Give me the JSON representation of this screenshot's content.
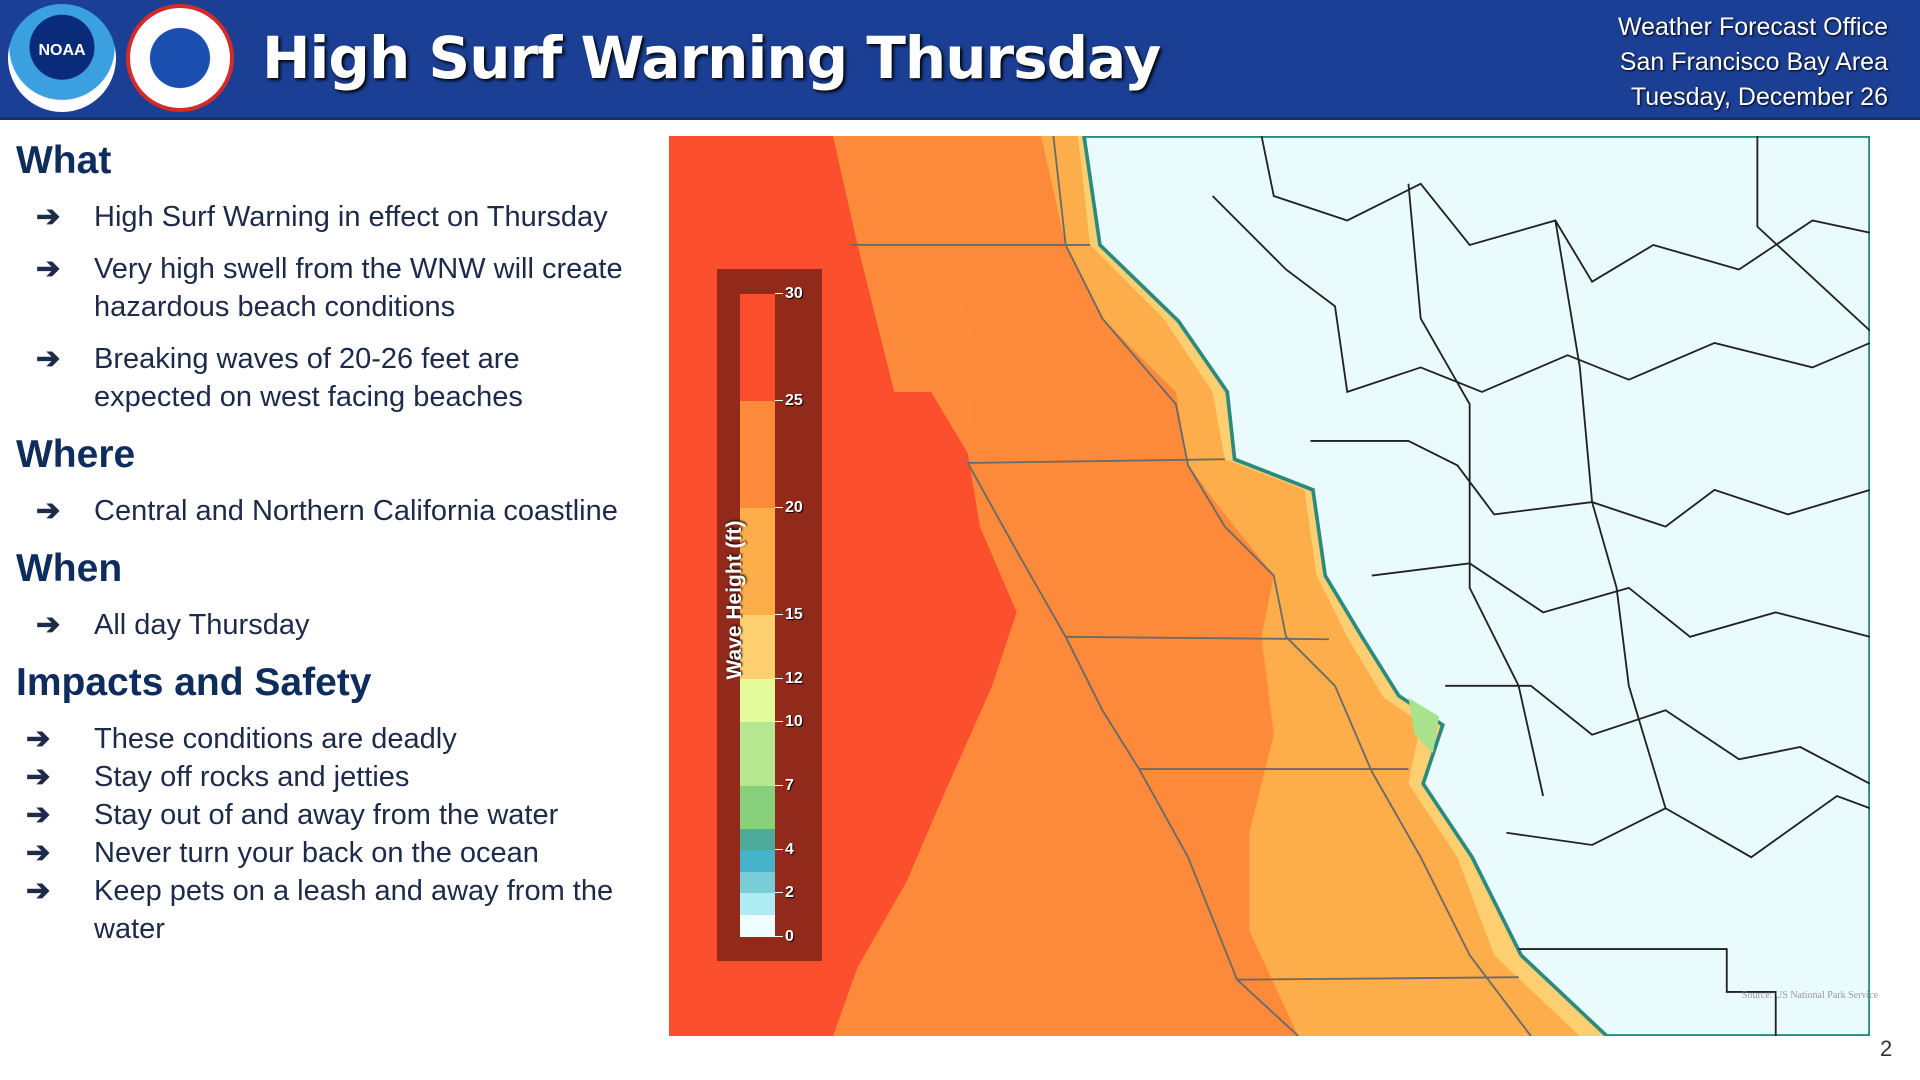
{
  "header": {
    "title": "High Surf Warning Thursday",
    "office_lines": [
      "Weather Forecast Office",
      "San Francisco Bay Area",
      "Tuesday, December 26"
    ],
    "logos": [
      "NOAA",
      "National Weather Service"
    ]
  },
  "sections": [
    {
      "heading": "What",
      "items": [
        "High Surf Warning in effect on Thursday",
        "Very high swell from the WNW will create hazardous beach conditions",
        "Breaking waves of 20-26 feet are expected on west facing beaches"
      ]
    },
    {
      "heading": "Where",
      "items": [
        "Central and Northern California coastline"
      ]
    },
    {
      "heading": "When",
      "items": [
        "All day Thursday"
      ]
    },
    {
      "heading": "Impacts and Safety",
      "items": [
        "These conditions are deadly",
        "Stay off rocks and jetties",
        "Stay out of and away from the water",
        "Never turn your back on the ocean",
        "Keep pets on a leash and away from the water"
      ]
    }
  ],
  "bullet_icon": "arrow-right-icon",
  "legend": {
    "label": "Wave Height (ft)",
    "ticks": [
      "30",
      "25",
      "20",
      "15",
      "12",
      "10",
      "7",
      "4",
      "2",
      "0"
    ]
  },
  "map": {
    "source": "Source: US National Park Service"
  },
  "page_number": "2"
}
